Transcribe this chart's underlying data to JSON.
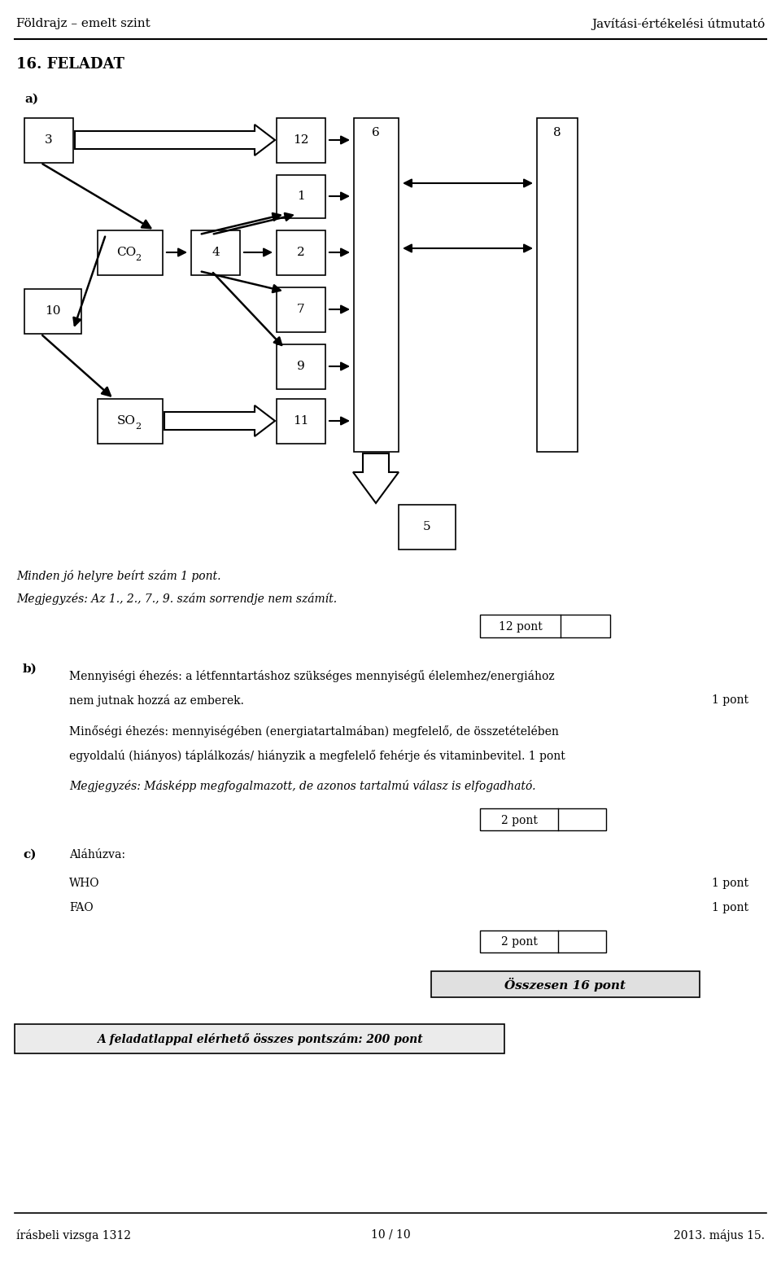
{
  "header_left": "Földrajz – emelt szint",
  "header_right": "Javítási-értékelési útmutató",
  "task_title": "16. FELADAT",
  "section_a": "a)",
  "section_b": "b)",
  "section_c": "c)",
  "b_text1": "Mennyiségi éhezés: a létfenntartáshoz szükséges mennyiségű élelemhez/energiához",
  "b_text2": "nem jutnak hozzá az emberek.",
  "b_text1_score": "1 pont",
  "b_text3": "Minőségi éhezés: mennyiségében (energiatartalmában) megfelelő, de összetételében",
  "b_text4": "egyoldalú (hiányos) táplálkozás/ hiányzik a megfelelő fehérje és vitaminbevitel. 1 pont",
  "b_italic": "Megjegyzés: Másképp megfogalmazott, de azonos tartalmú válasz is elfogadható.",
  "c_text": "Aláhúzva:",
  "c_who": "WHO",
  "c_fao": "FAO",
  "c_who_score": "1 pont",
  "c_fao_score": "1 pont",
  "note_text": "Minden jó helyre beírt szám 1 pont.",
  "note_text2": "Megjegyzés: Az 1., 2., 7., 9. szám sorrendje nem számít.",
  "ossz_text": "Összesen 16 pont",
  "footer_box_text": "A feladatlappal elérhető összes pontszám: 200 pont",
  "footer_left": "írásbeli vizsga 1312",
  "footer_mid": "10 / 10",
  "footer_right": "2013. május 15.",
  "bg_color": "#ffffff"
}
